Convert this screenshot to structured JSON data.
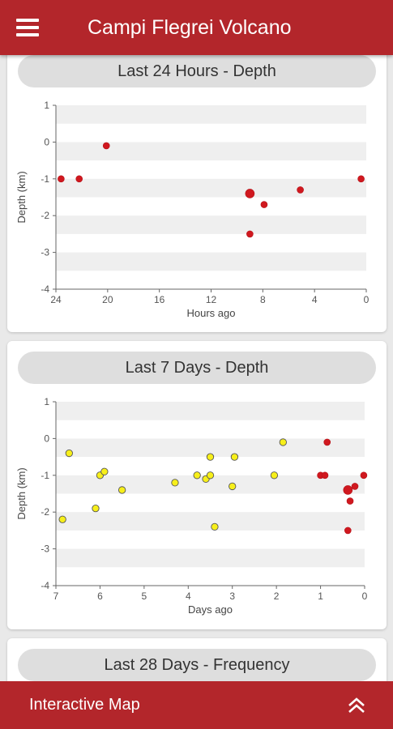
{
  "appbar": {
    "title": "Campi Flegrei Volcano",
    "menu_icon": "menu-icon"
  },
  "bottom_bar": {
    "label": "Interactive Map",
    "icon": "double-chevron-up-icon"
  },
  "colors": {
    "accent": "#b3262b",
    "recent_point": "#d0181f",
    "older_point": "#f7ef1a"
  },
  "chart_data": [
    {
      "type": "scatter",
      "title": "Last 24 Hours - Depth",
      "xlabel": "Hours ago",
      "ylabel": "Depth (km)",
      "xlim": [
        24,
        0
      ],
      "ylim": [
        -4,
        1
      ],
      "xticks": [
        "24",
        "20",
        "16",
        "12",
        "8",
        "4",
        "0"
      ],
      "yticks": [
        "1",
        "0",
        "-1",
        "-2",
        "-3",
        "-4"
      ],
      "grid": "alternating horizontal bands",
      "series": [
        {
          "points": [
            {
              "x": 23.6,
              "y": -1.0
            },
            {
              "x": 22.2,
              "y": -1.0
            },
            {
              "x": 20.1,
              "y": -0.1
            },
            {
              "x": 9.0,
              "y": -1.4,
              "large": true
            },
            {
              "x": 9.0,
              "y": -2.5
            },
            {
              "x": 7.9,
              "y": -1.7
            },
            {
              "x": 5.1,
              "y": -1.3
            },
            {
              "x": 0.4,
              "y": -1.0
            }
          ]
        }
      ]
    },
    {
      "type": "scatter",
      "title": "Last 7 Days - Depth",
      "xlabel": "Days ago",
      "ylabel": "Depth (km)",
      "xlim": [
        7,
        0
      ],
      "ylim": [
        -4,
        1
      ],
      "xticks": [
        "7",
        "6",
        "5",
        "4",
        "3",
        "2",
        "1",
        "0"
      ],
      "yticks": [
        "1",
        "0",
        "-1",
        "-2",
        "-3",
        "-4"
      ],
      "grid": "alternating horizontal bands",
      "series": [
        {
          "color": "yellow",
          "points": [
            {
              "x": 6.85,
              "y": -2.2
            },
            {
              "x": 6.7,
              "y": -0.4
            },
            {
              "x": 6.1,
              "y": -1.9
            },
            {
              "x": 6.0,
              "y": -1.0
            },
            {
              "x": 5.9,
              "y": -0.9
            },
            {
              "x": 5.5,
              "y": -1.4
            },
            {
              "x": 4.3,
              "y": -1.2
            },
            {
              "x": 3.8,
              "y": -1.0
            },
            {
              "x": 3.6,
              "y": -1.1
            },
            {
              "x": 3.5,
              "y": -0.5
            },
            {
              "x": 3.5,
              "y": -1.0
            },
            {
              "x": 3.4,
              "y": -2.4
            },
            {
              "x": 3.0,
              "y": -1.3
            },
            {
              "x": 2.95,
              "y": -0.5
            },
            {
              "x": 2.05,
              "y": -1.0
            },
            {
              "x": 1.85,
              "y": -0.1
            }
          ]
        },
        {
          "color": "red",
          "points": [
            {
              "x": 1.0,
              "y": -1.0
            },
            {
              "x": 0.9,
              "y": -1.0
            },
            {
              "x": 0.85,
              "y": -0.1
            },
            {
              "x": 0.38,
              "y": -1.4,
              "large": true
            },
            {
              "x": 0.38,
              "y": -2.5
            },
            {
              "x": 0.33,
              "y": -1.7
            },
            {
              "x": 0.22,
              "y": -1.3
            },
            {
              "x": 0.02,
              "y": -1.0
            }
          ]
        }
      ]
    },
    {
      "type": "bar",
      "title": "Last 28 Days - Frequency"
    }
  ]
}
